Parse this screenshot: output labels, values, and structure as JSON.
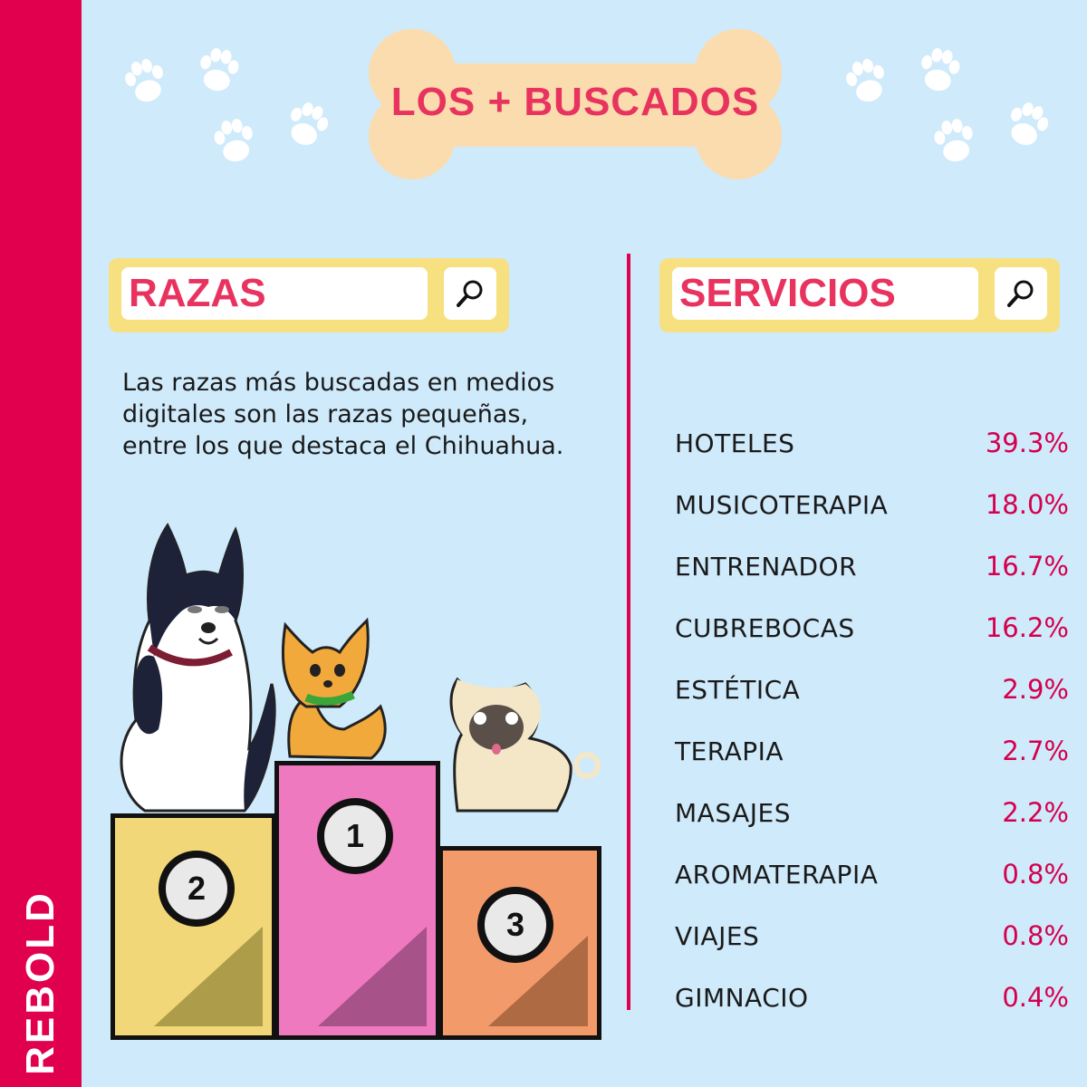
{
  "brand": "REBOLD",
  "header": {
    "title": "LOS + BUSCADOS"
  },
  "razas": {
    "search_label": "RAZAS",
    "description": "Las razas más buscadas en medios digitales son las razas pequeñas, entre los que destaca el Chihuahua."
  },
  "servicios": {
    "search_label": "SERVICIOS",
    "items": [
      {
        "name": "HOTELES",
        "value": "39.3%"
      },
      {
        "name": "MUSICOTERAPIA",
        "value": "18.0%"
      },
      {
        "name": "ENTRENADOR",
        "value": "16.7%"
      },
      {
        "name": "CUBREBOCAS",
        "value": "16.2%"
      },
      {
        "name": "ESTÉTICA",
        "value": "2.9%"
      },
      {
        "name": "TERAPIA",
        "value": "2.7%"
      },
      {
        "name": "MASAJES",
        "value": "2.2%"
      },
      {
        "name": "AROMATERAPIA",
        "value": "0.8%"
      },
      {
        "name": "VIAJES",
        "value": "0.8%"
      },
      {
        "name": "GIMNACIO",
        "value": "0.4%"
      }
    ]
  },
  "podium": {
    "places": [
      {
        "label": "2",
        "color": "#f1d777"
      },
      {
        "label": "1",
        "color": "#ee79bf"
      },
      {
        "label": "3",
        "color": "#f39a6b"
      }
    ]
  },
  "icons": [
    "paw-icon",
    "bone-icon",
    "search-icon",
    "husky-icon",
    "chihuahua-icon",
    "pug-icon"
  ],
  "colors": {
    "accent": "#e0004d",
    "title": "#e8335f",
    "background": "#cfeafb",
    "bone": "#fbdcae",
    "search_bar": "#f7e080"
  }
}
